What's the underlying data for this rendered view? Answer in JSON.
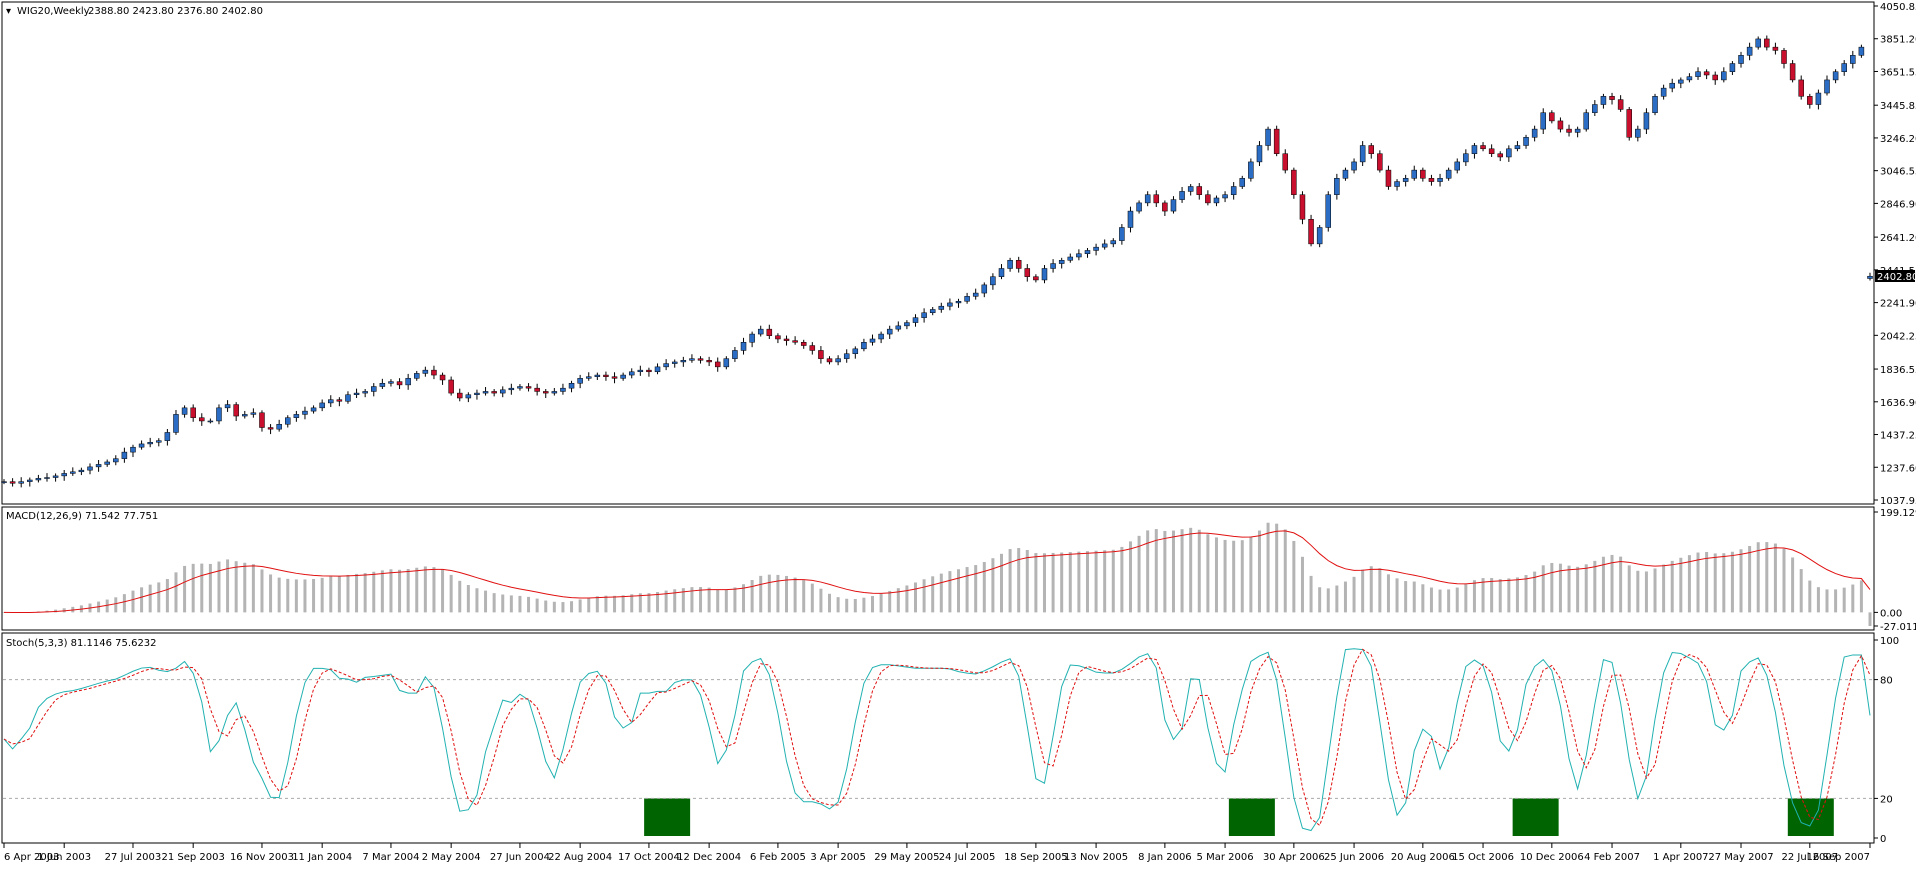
{
  "chart_data": [
    {
      "type": "candlestick",
      "symbol_label": "WIG20,Weekly",
      "ohlc_label": "2388.80 2423.80 2376.80 2402.80",
      "current_price_label": "2402.80",
      "y_ticks": [
        "4050.85",
        "3851.20",
        "3651.55",
        "3445.85",
        "3246.20",
        "3046.55",
        "2846.90",
        "2641.20",
        "2441.55",
        "2241.90",
        "2042.25",
        "1836.55",
        "1636.90",
        "1437.25",
        "1237.60",
        "1037.95"
      ],
      "ylim": [
        1037.95,
        4050.85
      ],
      "up_color": "#2b6cc4",
      "down_color": "#c8102e",
      "close_series": [
        1150,
        1140,
        1150,
        1160,
        1170,
        1175,
        1185,
        1200,
        1210,
        1220,
        1240,
        1255,
        1270,
        1290,
        1330,
        1360,
        1380,
        1390,
        1400,
        1450,
        1560,
        1600,
        1540,
        1520,
        1520,
        1600,
        1620,
        1550,
        1560,
        1570,
        1480,
        1470,
        1500,
        1540,
        1560,
        1580,
        1600,
        1630,
        1650,
        1640,
        1680,
        1690,
        1700,
        1730,
        1750,
        1760,
        1740,
        1780,
        1810,
        1830,
        1800,
        1770,
        1690,
        1660,
        1680,
        1690,
        1700,
        1690,
        1710,
        1720,
        1730,
        1720,
        1700,
        1690,
        1700,
        1720,
        1750,
        1780,
        1790,
        1800,
        1790,
        1780,
        1800,
        1820,
        1830,
        1820,
        1850,
        1870,
        1880,
        1890,
        1900,
        1890,
        1880,
        1850,
        1900,
        1950,
        2000,
        2050,
        2080,
        2040,
        2020,
        2010,
        2000,
        1980,
        1950,
        1900,
        1880,
        1900,
        1930,
        1960,
        2000,
        2020,
        2050,
        2080,
        2100,
        2120,
        2150,
        2180,
        2200,
        2220,
        2240,
        2250,
        2280,
        2300,
        2350,
        2400,
        2450,
        2500,
        2450,
        2400,
        2380,
        2450,
        2480,
        2500,
        2520,
        2540,
        2560,
        2580,
        2600,
        2620,
        2700,
        2800,
        2850,
        2900,
        2850,
        2800,
        2870,
        2920,
        2950,
        2900,
        2850,
        2880,
        2900,
        2950,
        3000,
        3100,
        3200,
        3300,
        3150,
        3050,
        2900,
        2750,
        2600,
        2700,
        2900,
        3000,
        3050,
        3100,
        3200,
        3150,
        3050,
        2950,
        2980,
        3000,
        3050,
        3000,
        2980,
        3000,
        3050,
        3100,
        3150,
        3200,
        3180,
        3150,
        3130,
        3180,
        3200,
        3250,
        3300,
        3400,
        3350,
        3300,
        3280,
        3300,
        3400,
        3450,
        3500,
        3480,
        3420,
        3250,
        3300,
        3400,
        3500,
        3550,
        3580,
        3600,
        3620,
        3650,
        3630,
        3600,
        3650,
        3700,
        3750,
        3800,
        3850,
        3800,
        3780,
        3700,
        3600,
        3500,
        3450,
        3520,
        3600,
        3650,
        3700,
        3750,
        3800,
        2402.8
      ]
    },
    {
      "type": "histogram-line",
      "label": "MACD(12,26,9) 71.542 77.751",
      "y_ticks": [
        "199.129",
        "0.00",
        "-27.011"
      ],
      "ylim": [
        -27.011,
        199.129
      ],
      "hist_color": "#b4b4b4",
      "signal_color": "#e01010"
    },
    {
      "type": "line",
      "label": "Stoch(5,3,3) 81.1146 75.6232",
      "y_ticks": [
        "100",
        "80",
        "20",
        "0"
      ],
      "ylim": [
        0,
        100
      ],
      "main_color": "#21b1b1",
      "signal_color": "#e01010",
      "highlight_color": "#006400",
      "highlight_indices": [
        77,
        145,
        178,
        210,
        282
      ]
    }
  ],
  "x_labels": [
    "6 Apr 2003",
    "1 Jun 2003",
    "27 Jul 2003",
    "21 Sep 2003",
    "16 Nov 2003",
    "11 Jan 2004",
    "7 Mar 2004",
    "2 May 2004",
    "27 Jun 2004",
    "22 Aug 2004",
    "17 Oct 2004",
    "12 Dec 2004",
    "6 Feb 2005",
    "3 Apr 2005",
    "29 May 2005",
    "24 Jul 2005",
    "18 Sep 2005",
    "13 Nov 2005",
    "8 Jan 2006",
    "5 Mar 2006",
    "30 Apr 2006",
    "25 Jun 2006",
    "20 Aug 2006",
    "15 Oct 2006",
    "10 Dec 2006",
    "4 Feb 2007",
    "1 Apr 2007",
    "27 May 2007",
    "22 Jul 2007",
    "16 Sep 2007"
  ]
}
